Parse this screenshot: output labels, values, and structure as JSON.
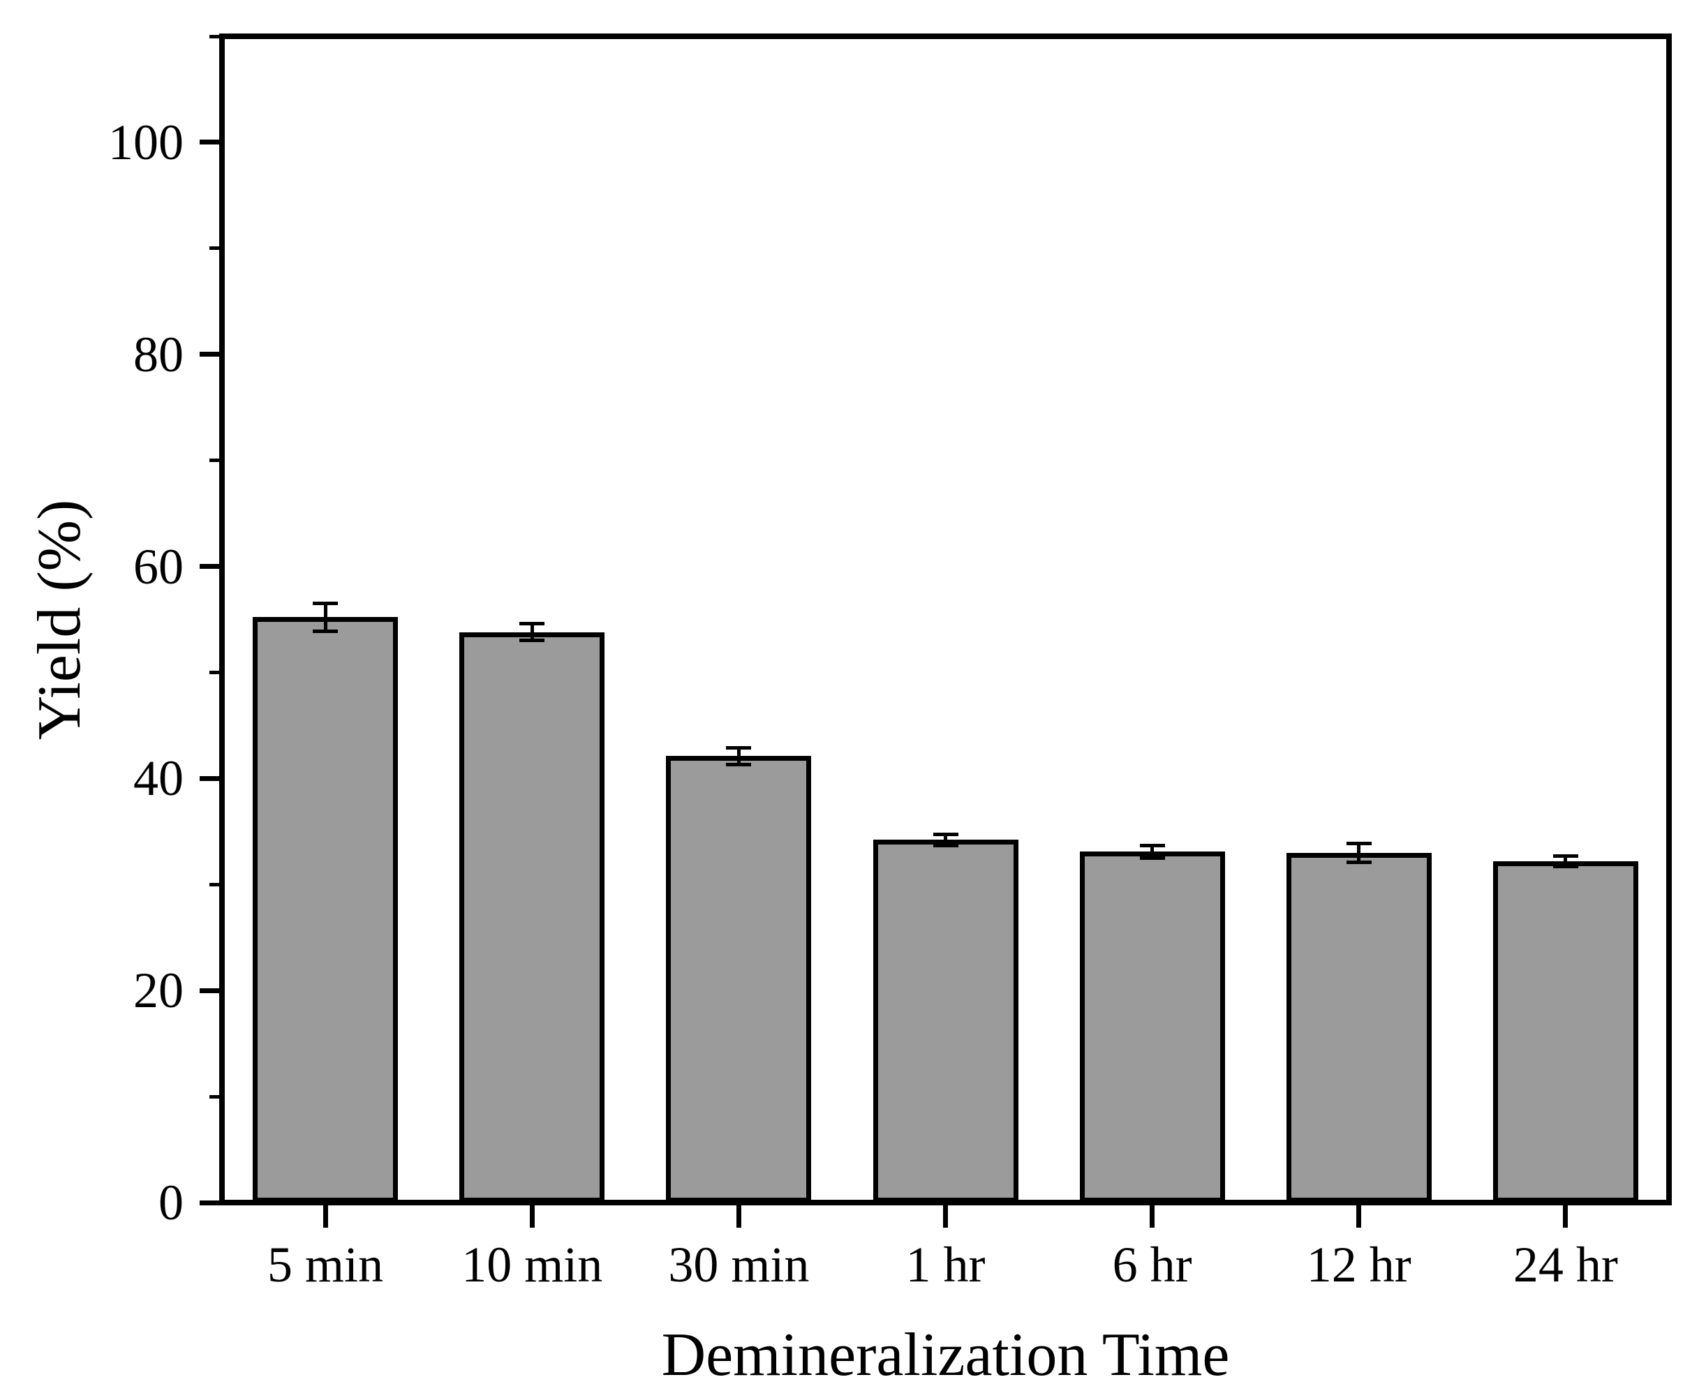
{
  "chart_data": {
    "type": "bar",
    "title": "",
    "xlabel": "Demineralization Time",
    "ylabel": "Yield (%)",
    "categories": [
      "5 min",
      "10 min",
      "30 min",
      "1 hr",
      "6 hr",
      "12 hr",
      "24 hr"
    ],
    "values": [
      55.2,
      53.8,
      42.1,
      34.2,
      33.1,
      33.0,
      32.2
    ],
    "errors": [
      1.3,
      0.8,
      0.8,
      0.5,
      0.6,
      0.9,
      0.5
    ],
    "ylim": [
      0,
      110
    ],
    "yticks": [
      0,
      20,
      40,
      60,
      80,
      100
    ],
    "minor_yticks": [
      10,
      30,
      50,
      70,
      90,
      110
    ],
    "grid": false,
    "legend": "none",
    "error_bar_style": "caps above and below bar top",
    "colors": {
      "bar_fill": "#9b9b9b",
      "bar_edge": "#000000",
      "axis": "#000000",
      "background": "#ffffff",
      "text": "#000000"
    }
  }
}
